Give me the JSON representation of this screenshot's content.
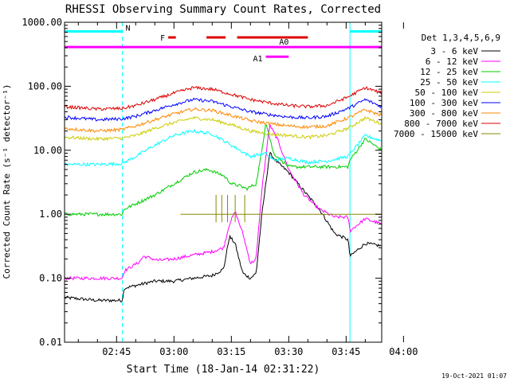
{
  "chart_data": {
    "type": "line",
    "title": "RHESSI Observing Summary Count Rates, Corrected",
    "xlabel": "Start Time (18-Jan-14 02:31:22)",
    "ylabel": "Corrected Count Rate (s⁻¹ detector⁻¹)",
    "y_scale": "log",
    "ylim": [
      0.01,
      1000
    ],
    "xlim_min": [
      151.4,
      234.3
    ],
    "x_tick_labels": [
      "02:45",
      "03:00",
      "03:15",
      "03:30",
      "03:45",
      "04:00"
    ],
    "x_tick_values_min": [
      165,
      180,
      195,
      210,
      225,
      240
    ],
    "y_tick_labels": [
      "0.01",
      "0.10",
      "1.00",
      "10.00",
      "100.00",
      "1000.00"
    ],
    "y_tick_values": [
      0.01,
      0.1,
      1,
      10,
      100,
      1000
    ],
    "legend_title": "Det 1,3,4,5,6,9",
    "legend_placement": "right",
    "series": [
      {
        "name": "3 - 6 keV",
        "color": "#000000",
        "x": [
          151.4,
          160,
          166.5,
          167,
          175,
          180,
          185,
          190,
          193,
          194.5,
          196,
          197,
          198,
          200,
          201.5,
          203,
          205,
          207,
          210,
          214,
          218,
          222,
          225.5,
          226,
          230,
          234.3
        ],
        "values": [
          0.05,
          0.045,
          0.045,
          0.07,
          0.09,
          0.09,
          0.1,
          0.11,
          0.14,
          0.45,
          0.35,
          0.2,
          0.12,
          0.1,
          0.12,
          1.0,
          9.0,
          6.5,
          4.5,
          2.3,
          1.2,
          0.5,
          0.4,
          0.22,
          0.35,
          0.32
        ]
      },
      {
        "name": "6 - 12 keV",
        "color": "#ff00ff",
        "x": [
          151.4,
          160,
          166.5,
          167,
          171,
          172,
          176,
          180,
          185,
          190,
          193,
          194.5,
          196,
          198,
          200,
          201.5,
          203,
          205,
          207,
          210,
          214,
          218,
          222,
          225.5,
          226,
          230,
          234.3
        ],
        "values": [
          0.1,
          0.1,
          0.1,
          0.13,
          0.18,
          0.22,
          0.19,
          0.2,
          0.23,
          0.26,
          0.3,
          0.7,
          1.1,
          0.5,
          0.17,
          0.2,
          2.5,
          25.0,
          15.0,
          5.0,
          2.0,
          1.2,
          0.9,
          0.9,
          0.55,
          0.85,
          0.7
        ]
      },
      {
        "name": "12 - 25 keV",
        "color": "#00cc00",
        "x": [
          151.4,
          160,
          166.5,
          167,
          175,
          180,
          185,
          189,
          193,
          195,
          197,
          199,
          201.5,
          203,
          204,
          206,
          210,
          215,
          220,
          222,
          225.5,
          226,
          230,
          234.3
        ],
        "values": [
          1.0,
          1.0,
          1.0,
          1.2,
          2.0,
          3.0,
          4.5,
          5.0,
          4.0,
          3.0,
          2.8,
          2.5,
          3.0,
          10.0,
          28.0,
          9.0,
          5.5,
          5.5,
          5.5,
          5.5,
          5.5,
          7.0,
          15.0,
          10.0
        ]
      },
      {
        "name": "25 - 50 keV",
        "color": "#00ffff",
        "x": [
          151.4,
          160,
          166.5,
          170,
          175,
          180,
          185,
          190,
          195,
          200,
          204,
          206,
          210,
          215,
          220,
          225.5,
          230,
          234.3
        ],
        "values": [
          6.0,
          6.0,
          6.2,
          8.0,
          12.0,
          17.0,
          20.0,
          18.0,
          12.0,
          8.0,
          9.0,
          7.0,
          7.5,
          6.5,
          6.8,
          8.0,
          17.0,
          14.0
        ]
      },
      {
        "name": "50 - 100 keV",
        "color": "#cccc00",
        "x": [
          151.4,
          160,
          166.5,
          170,
          175,
          180,
          185,
          190,
          195,
          200,
          205,
          210,
          215,
          220,
          225.5,
          230,
          234.3
        ],
        "values": [
          16.0,
          15.0,
          15.5,
          17.0,
          22.0,
          27.0,
          32.0,
          30.0,
          25.0,
          20.0,
          18.0,
          17.0,
          16.0,
          17.0,
          22.0,
          32.0,
          26.0
        ]
      },
      {
        "name": "100 - 300 keV",
        "color": "#0000ff",
        "x": [
          151.4,
          160,
          166.5,
          170,
          175,
          180,
          185,
          190,
          195,
          200,
          205,
          210,
          215,
          220,
          225.5,
          230,
          234.3
        ],
        "values": [
          33.0,
          30.0,
          31.0,
          34.0,
          42.0,
          52.0,
          62.0,
          58.0,
          48.0,
          40.0,
          36.0,
          33.0,
          32.0,
          34.0,
          45.0,
          62.0,
          48.0
        ]
      },
      {
        "name": "300 - 800 keV",
        "color": "#ff8800",
        "x": [
          151.4,
          160,
          166.5,
          170,
          175,
          180,
          185,
          190,
          195,
          200,
          205,
          210,
          215,
          220,
          225.5,
          230,
          234.3
        ],
        "values": [
          22.0,
          20.0,
          21.0,
          24.0,
          30.0,
          37.0,
          44.0,
          42.0,
          35.0,
          29.0,
          26.0,
          24.0,
          23.0,
          24.0,
          32.0,
          43.0,
          35.0
        ]
      },
      {
        "name": "800 - 7000 keV",
        "color": "#dd0000",
        "x": [
          151.4,
          160,
          166.5,
          170,
          175,
          180,
          185,
          190,
          195,
          200,
          205,
          210,
          215,
          220,
          225.5,
          230,
          234.3
        ],
        "values": [
          48.0,
          44.0,
          45.0,
          50.0,
          62.0,
          78.0,
          95.0,
          90.0,
          75.0,
          62.0,
          55.0,
          50.0,
          48.0,
          50.0,
          68.0,
          95.0,
          78.0
        ]
      },
      {
        "name": "7000 - 15000 keV",
        "color": "#888800",
        "x": [
          181.7,
          185,
          190,
          195,
          200,
          205,
          210,
          215,
          220,
          225,
          230,
          234.3
        ],
        "values": [
          1.0,
          1.0,
          1.0,
          1.0,
          1.0,
          1.0,
          1.0,
          1.0,
          1.0,
          1.0,
          1.0,
          1.0
        ]
      }
    ],
    "flag_bars": [
      {
        "label": "N",
        "color": "#00ffff",
        "level": 720,
        "segments_min": [
          [
            151.4,
            166.5
          ],
          [
            226,
            234.3
          ]
        ]
      },
      {
        "label": "F",
        "color": "#dd0000",
        "level": 580,
        "segments_min": [
          [
            178.5,
            180.5
          ],
          [
            188.5,
            193.5
          ],
          [
            196.5,
            215
          ]
        ]
      },
      {
        "label": "A0",
        "color": "#ff00ff",
        "level": 410,
        "segments_min": [
          [
            151.4,
            234.3
          ]
        ]
      },
      {
        "label": "A1",
        "color": "#ff00ff",
        "level": 290,
        "segments_min": [
          [
            204,
            210
          ]
        ]
      }
    ],
    "vertical_markers_min": [
      {
        "x": 151.4,
        "style": "solid",
        "color": "#00ffff"
      },
      {
        "x": 166.5,
        "style": "dashed",
        "color": "#00ffff"
      },
      {
        "x": 226.0,
        "style": "solid",
        "color": "#00ffff"
      },
      {
        "x": 234.3,
        "style": "dashed",
        "color": "#00ffff"
      }
    ],
    "footer_timestamp": "19-Oct-2021 01:07"
  }
}
